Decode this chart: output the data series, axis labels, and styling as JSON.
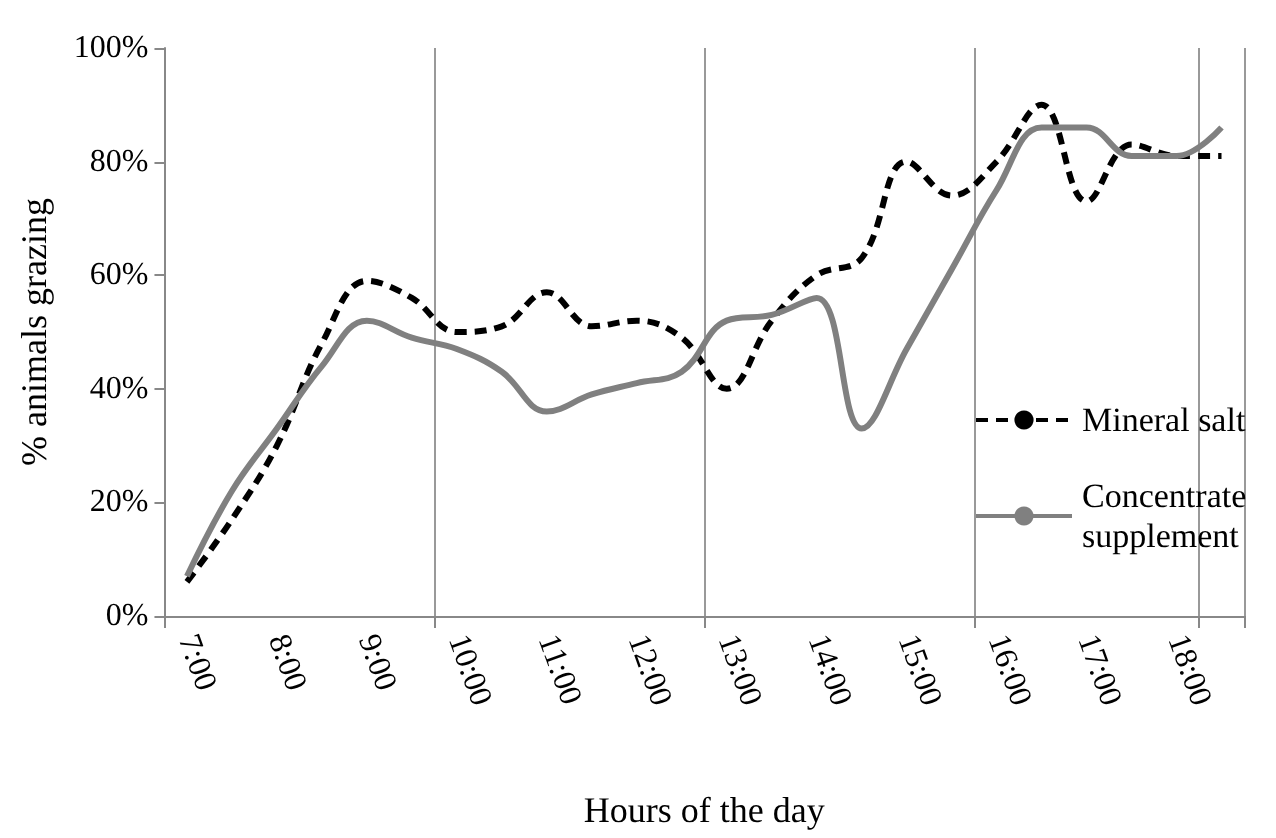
{
  "chart_data": {
    "type": "line",
    "xlabel": "Hours of the day",
    "ylabel": "% animals grazing",
    "categories": [
      "7:00",
      null,
      "8:00",
      null,
      "9:00",
      null,
      "10:00",
      null,
      "11:00",
      null,
      "12:00",
      null,
      "13:00",
      null,
      "14:00",
      null,
      "15:00",
      null,
      "16:00",
      null,
      "17:00",
      null,
      "18:00",
      null
    ],
    "series": [
      {
        "name": "Mineral salt",
        "color": "#000000",
        "line_style": "dashed",
        "values": [
          6,
          17,
          30,
          48,
          59,
          56,
          50,
          51,
          57,
          51,
          52,
          49,
          40,
          52,
          60,
          63,
          80,
          74,
          80,
          90,
          73,
          83,
          81,
          81
        ]
      },
      {
        "name": "Concentrate supplement",
        "color": "#808080",
        "line_style": "solid",
        "values": [
          7,
          22,
          33,
          44,
          52,
          49,
          47,
          43,
          36,
          39,
          41,
          43,
          52,
          53,
          56,
          33,
          47,
          61,
          75,
          86,
          86,
          81,
          81,
          86
        ]
      }
    ],
    "ylim": [
      0,
      100
    ],
    "yticks": [
      {
        "value": 0,
        "label": "0%"
      },
      {
        "value": 20,
        "label": "20%"
      },
      {
        "value": 40,
        "label": "40%"
      },
      {
        "value": 60,
        "label": "60%"
      },
      {
        "value": 80,
        "label": "80%"
      },
      {
        "value": 100,
        "label": "100%"
      }
    ],
    "grid": "x",
    "legend": "right",
    "marker": "none"
  }
}
